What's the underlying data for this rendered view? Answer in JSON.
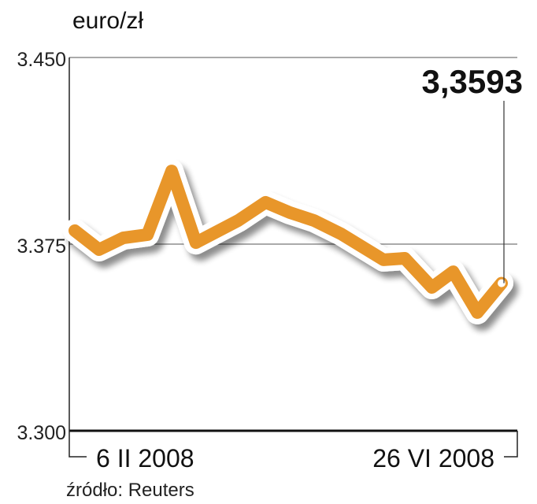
{
  "chart_data": {
    "type": "line",
    "title": "euro/zł",
    "source": "źródło: Reuters",
    "ylim": [
      3.3,
      3.45
    ],
    "yticks": [
      "3.450",
      "3.375",
      "3.300"
    ],
    "ytick_values": [
      3.45,
      3.375,
      3.3
    ],
    "xlim": [
      "2008-02-06",
      "2008-06-26"
    ],
    "xticks": [
      "6 II 2008",
      "26 VI 2008"
    ],
    "grid": true,
    "last_value_label": "3,3593",
    "line_color": "#e8962a",
    "series": [
      {
        "x": [
          "2008-02-06",
          "2008-02-14",
          "2008-02-22",
          "2008-03-01",
          "2008-03-09",
          "2008-03-17",
          "2008-03-31",
          "2008-04-09",
          "2008-04-17",
          "2008-04-25",
          "2008-05-04",
          "2008-05-18",
          "2008-05-25",
          "2008-06-03",
          "2008-06-10",
          "2008-06-18",
          "2008-06-26"
        ],
        "values": [
          3.3804,
          3.3728,
          3.3775,
          3.3788,
          3.4044,
          3.3756,
          3.3845,
          3.3918,
          3.3877,
          3.3845,
          3.3791,
          3.3687,
          3.3693,
          3.3576,
          3.3639,
          3.3475,
          3.3593
        ]
      }
    ]
  }
}
